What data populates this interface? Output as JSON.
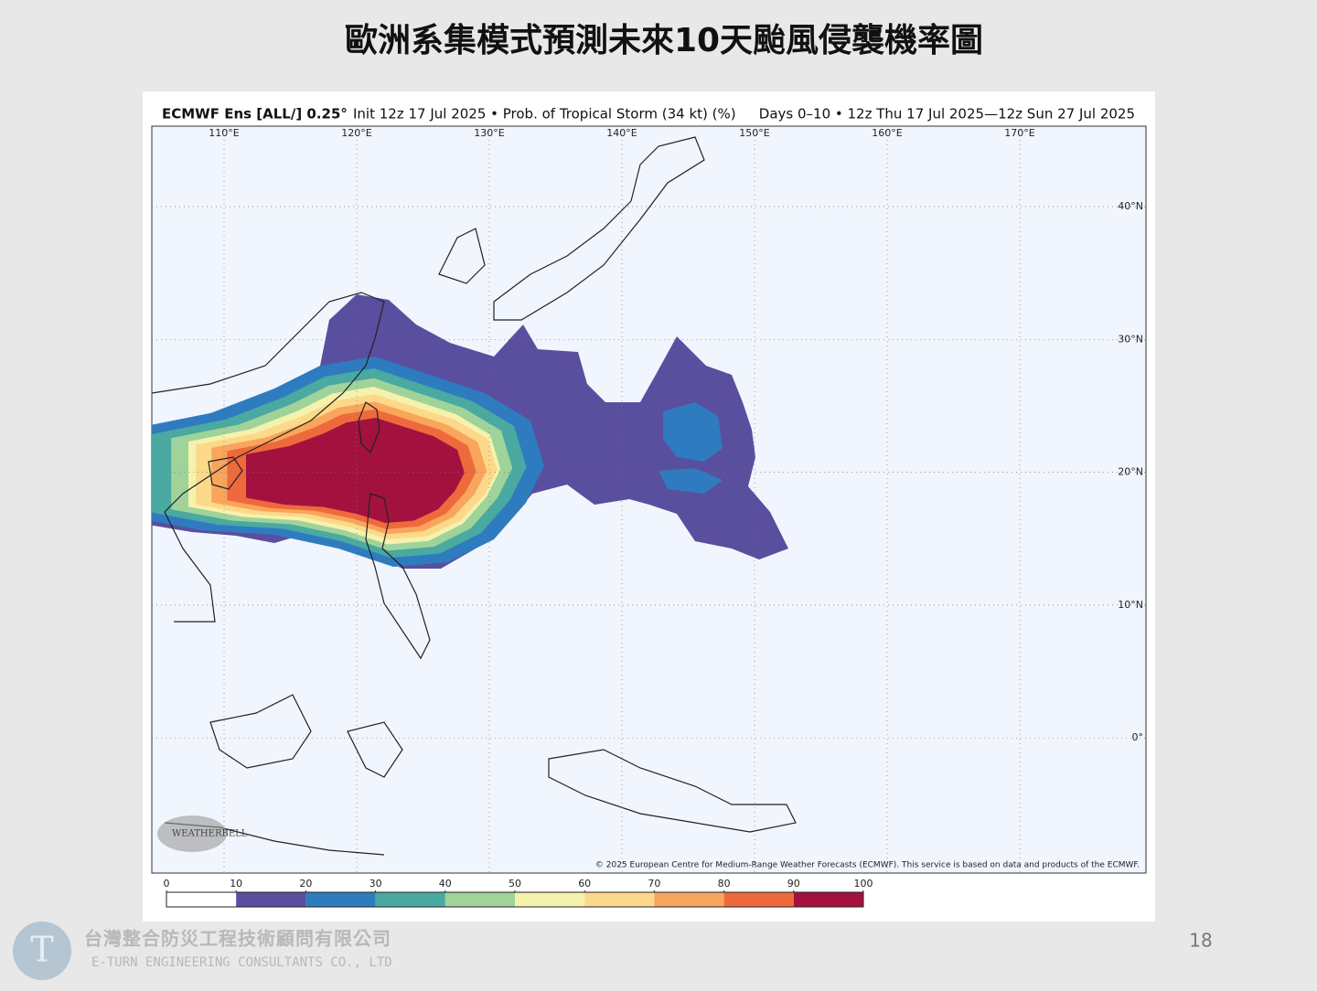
{
  "slide": {
    "title": "歐洲系集模式預測未來10天颱風侵襲機率圖",
    "page_number": "18"
  },
  "map": {
    "header_left_bold": "ECMWF Ens [ALL/] 0.25°",
    "header_left": "Init 12z 17 Jul 2025 • Prob. of Tropical Storm (34 kt) (%)",
    "header_right": "Days 0–10 • 12z Thu 17 Jul 2025—12z Sun 27 Jul 2025",
    "lon_labels": [
      "110°E",
      "120°E",
      "130°E",
      "140°E",
      "150°E",
      "160°E",
      "170°E"
    ],
    "lat_labels": [
      "40°N",
      "30°N",
      "20°N",
      "10°N",
      "0°"
    ],
    "watermark": "WEATHERBELL",
    "copyright": "© 2025 European Centre for Medium-Range Weather Forecasts (ECMWF). This service is based on data and products of the ECMWF."
  },
  "colorbar": {
    "ticks": [
      0,
      10,
      20,
      30,
      40,
      50,
      60,
      70,
      80,
      90,
      100
    ],
    "colors": [
      "#ffffff",
      "#5a4e9e",
      "#2e7cbf",
      "#4aa9a0",
      "#9fd39a",
      "#f5f2ad",
      "#fcd98a",
      "#f9a55c",
      "#ee6a3c",
      "#a3123e"
    ]
  },
  "footer": {
    "company_zh": "台灣整合防災工程技術顧問有限公司",
    "company_en": "E-TURN ENGINEERING CONSULTANTS CO., LTD"
  }
}
